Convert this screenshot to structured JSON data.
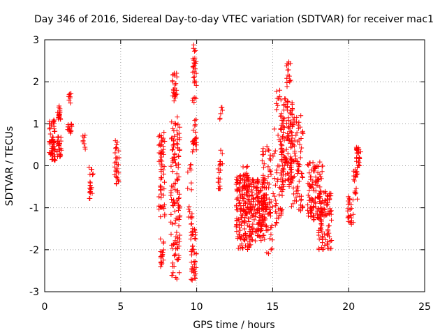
{
  "chart_data": {
    "type": "scatter",
    "title": "Day 346 of 2016, Sidereal Day-to-day VTEC variation (SDTVAR) for receiver mac1",
    "xlabel": "GPS time / hours",
    "ylabel": "SDTVAR / TECUs",
    "xlim": [
      0,
      25
    ],
    "ylim": [
      -3,
      3
    ],
    "grid": true,
    "marker": "+",
    "color": "#ff0000",
    "x_ticks": [
      "0",
      "5",
      "10",
      "15",
      "20",
      "25"
    ],
    "y_ticks": [
      "3",
      "2",
      "1",
      "0",
      "-1",
      "-2",
      "-3"
    ],
    "clusters": [
      {
        "x": [
          0.3,
          0.7
        ],
        "y": [
          0.1,
          1.1
        ],
        "n": 60
      },
      {
        "x": [
          0.8,
          1.1
        ],
        "y": [
          0.2,
          0.7
        ],
        "n": 25
      },
      {
        "x": [
          0.85,
          1.05
        ],
        "y": [
          1.1,
          1.45
        ],
        "n": 20
      },
      {
        "x": [
          1.5,
          1.8
        ],
        "y": [
          0.75,
          1.0
        ],
        "n": 14
      },
      {
        "x": [
          1.55,
          1.75
        ],
        "y": [
          1.45,
          1.75
        ],
        "n": 8
      },
      {
        "x": [
          2.5,
          2.7
        ],
        "y": [
          0.3,
          0.75
        ],
        "n": 8
      },
      {
        "x": [
          2.9,
          3.2
        ],
        "y": [
          -0.8,
          0.1
        ],
        "n": 20
      },
      {
        "x": [
          4.6,
          4.9
        ],
        "y": [
          -0.5,
          0.6
        ],
        "n": 30
      },
      {
        "x": [
          7.5,
          7.9
        ],
        "y": [
          -1.3,
          0.8
        ],
        "n": 60
      },
      {
        "x": [
          7.6,
          7.9
        ],
        "y": [
          -2.5,
          -1.7
        ],
        "n": 20
      },
      {
        "x": [
          8.3,
          8.9
        ],
        "y": [
          -2.7,
          1.2
        ],
        "n": 130
      },
      {
        "x": [
          8.4,
          8.7
        ],
        "y": [
          1.5,
          2.25
        ],
        "n": 25
      },
      {
        "x": [
          9.4,
          9.7
        ],
        "y": [
          -1.5,
          0.2
        ],
        "n": 18
      },
      {
        "x": [
          9.6,
          10.0
        ],
        "y": [
          -2.75,
          -1.5
        ],
        "n": 45
      },
      {
        "x": [
          9.7,
          10.0
        ],
        "y": [
          0.3,
          1.1
        ],
        "n": 25
      },
      {
        "x": [
          9.7,
          10.0
        ],
        "y": [
          1.5,
          2.9
        ],
        "n": 30
      },
      {
        "x": [
          11.4,
          11.7
        ],
        "y": [
          -0.6,
          0.4
        ],
        "n": 20
      },
      {
        "x": [
          11.5,
          11.7
        ],
        "y": [
          1.1,
          1.4
        ],
        "n": 6
      },
      {
        "x": [
          12.6,
          13.6
        ],
        "y": [
          -2.0,
          -0.2
        ],
        "n": 170
      },
      {
        "x": [
          13.0,
          13.4
        ],
        "y": [
          -0.6,
          0.0
        ],
        "n": 20
      },
      {
        "x": [
          13.6,
          14.6
        ],
        "y": [
          -1.8,
          -0.3
        ],
        "n": 150
      },
      {
        "x": [
          14.3,
          14.9
        ],
        "y": [
          -1.2,
          0.5
        ],
        "n": 60
      },
      {
        "x": [
          14.6,
          15.0
        ],
        "y": [
          -2.2,
          -1.4
        ],
        "n": 12
      },
      {
        "x": [
          15.0,
          15.7
        ],
        "y": [
          -1.5,
          1.0
        ],
        "n": 50
      },
      {
        "x": [
          15.2,
          15.5
        ],
        "y": [
          1.3,
          1.8
        ],
        "n": 10
      },
      {
        "x": [
          15.5,
          16.3
        ],
        "y": [
          -0.5,
          1.6
        ],
        "n": 130
      },
      {
        "x": [
          15.9,
          16.2
        ],
        "y": [
          1.8,
          2.5
        ],
        "n": 15
      },
      {
        "x": [
          16.2,
          17.0
        ],
        "y": [
          -1.1,
          1.2
        ],
        "n": 80
      },
      {
        "x": [
          17.3,
          18.3
        ],
        "y": [
          -1.3,
          0.1
        ],
        "n": 110
      },
      {
        "x": [
          18.0,
          18.9
        ],
        "y": [
          -2.0,
          -0.6
        ],
        "n": 90
      },
      {
        "x": [
          19.9,
          20.3
        ],
        "y": [
          -1.4,
          -0.7
        ],
        "n": 25
      },
      {
        "x": [
          20.3,
          20.6
        ],
        "y": [
          -0.8,
          -0.05
        ],
        "n": 20
      },
      {
        "x": [
          20.5,
          20.8
        ],
        "y": [
          0.0,
          0.45
        ],
        "n": 25
      }
    ]
  }
}
